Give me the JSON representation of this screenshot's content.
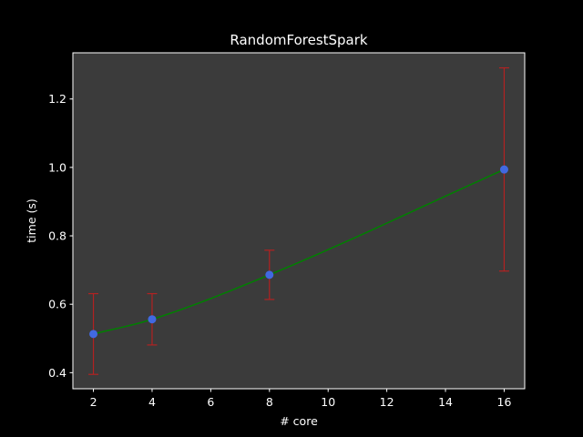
{
  "chart_data": {
    "type": "line",
    "title": "RandomForestSpark",
    "xlabel": "# core",
    "ylabel": "time (s)",
    "xlim": [
      1.3,
      16.7
    ],
    "ylim": [
      0.353,
      1.335
    ],
    "xticks": [
      2,
      4,
      6,
      8,
      10,
      12,
      14,
      16
    ],
    "yticks": [
      0.4,
      0.6,
      0.8,
      1.0,
      1.2
    ],
    "ytick_labels": [
      "0.4",
      "0.6",
      "0.8",
      "1.0",
      "1.2"
    ],
    "grid": false,
    "series": [
      {
        "x": [
          2,
          4,
          8,
          16
        ],
        "y": [
          0.513,
          0.556,
          0.686,
          0.994
        ],
        "yerr_low": [
          0.395,
          0.481,
          0.614,
          0.697
        ],
        "yerr_high": [
          0.631,
          0.631,
          0.758,
          1.291
        ]
      }
    ],
    "colors": {
      "background": "#000000",
      "plot_area": "#3b3b3b",
      "line": "#008000",
      "marker": "#4169e1",
      "errorbar": "#b22222",
      "text": "#ffffff"
    }
  }
}
